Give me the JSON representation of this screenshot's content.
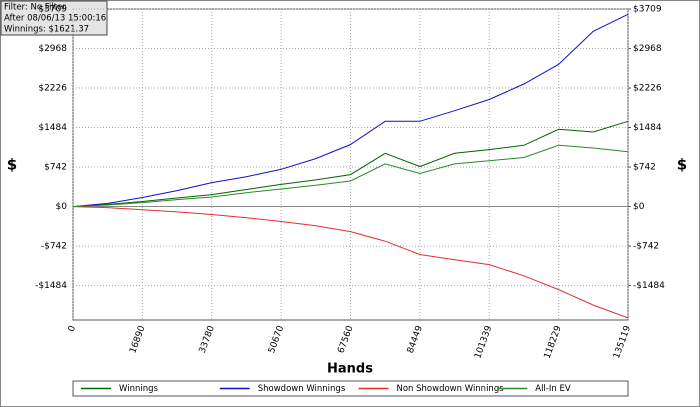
{
  "chart_data": {
    "type": "line",
    "info": [
      "Filter: No Filter",
      "After 08/06/13 15:00:16",
      "Winnings: $1621.37"
    ],
    "xlabel": "Hands",
    "ylabel": "$",
    "y2label": "$",
    "x": [
      0,
      8445,
      16890,
      25335,
      33780,
      42225,
      50670,
      59115,
      67560,
      76005,
      84449,
      92894,
      101339,
      109784,
      118229,
      126674,
      135119
    ],
    "series": [
      {
        "name": "Winnings",
        "color": "#006400",
        "values": [
          0,
          40,
          95,
          160,
          225,
          320,
          415,
          500,
          600,
          1000,
          750,
          1000,
          1070,
          1150,
          1450,
          1400,
          1600
        ]
      },
      {
        "name": "Showdown Winnings",
        "color": "#1010c8",
        "values": [
          0,
          60,
          170,
          300,
          450,
          560,
          700,
          900,
          1165,
          1600,
          1600,
          1800,
          2010,
          2300,
          2670,
          3290,
          3610
        ]
      },
      {
        "name": "Non Showdown Winnings",
        "color": "#e03030",
        "values": [
          0,
          -20,
          -60,
          -100,
          -150,
          -210,
          -280,
          -360,
          -470,
          -650,
          -900,
          -1000,
          -1090,
          -1300,
          -1560,
          -1850,
          -2090
        ]
      },
      {
        "name": "All-In EV",
        "color": "#2a8a2a",
        "values": [
          0,
          30,
          75,
          130,
          180,
          260,
          330,
          400,
          480,
          800,
          620,
          800,
          860,
          920,
          1150,
          1100,
          1030
        ]
      }
    ],
    "xlim": [
      0,
      135119
    ],
    "xticks": [
      0,
      16890,
      33780,
      50670,
      67560,
      84449,
      101339,
      118229,
      135119
    ],
    "ylim": [
      -2130,
      3709
    ],
    "yticks": [
      {
        "value": -1484,
        "label": "-$1484"
      },
      {
        "value": -742,
        "label": "-$742"
      },
      {
        "value": 0,
        "label": "$0"
      },
      {
        "value": 742,
        "label": "$742"
      },
      {
        "value": 1484,
        "label": "$1484"
      },
      {
        "value": 2226,
        "label": "$2226"
      },
      {
        "value": 2968,
        "label": "$2968"
      },
      {
        "value": 3709,
        "label": "$3709"
      }
    ],
    "y2lim": [
      -2130,
      3709
    ],
    "y2ticks": [
      {
        "value": -1484,
        "label": "-$1484"
      },
      {
        "value": -742,
        "label": "-$742"
      },
      {
        "value": 0,
        "label": "$0"
      },
      {
        "value": 742,
        "label": "$742"
      },
      {
        "value": 1484,
        "label": "$1484"
      },
      {
        "value": 2226,
        "label": "$2226"
      },
      {
        "value": 2968,
        "label": "$2968"
      },
      {
        "value": 3709,
        "label": "$3709"
      }
    ],
    "grid": true
  }
}
